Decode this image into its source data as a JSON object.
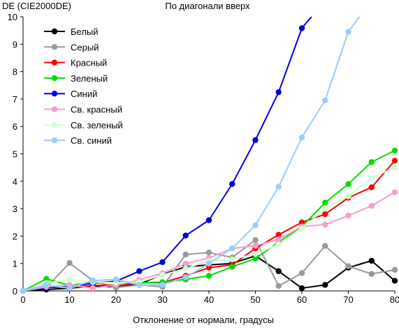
{
  "chart_data": {
    "type": "line",
    "title": "По диагонали вверх",
    "ylabel": "DE (CIE2000DE)",
    "xlabel": "Отклонение от нормали, градусы",
    "xlim": [
      0,
      80
    ],
    "ylim": [
      0,
      10
    ],
    "xticks": [
      0,
      10,
      20,
      30,
      40,
      50,
      60,
      70,
      80
    ],
    "yticks": [
      0,
      1,
      2,
      3,
      4,
      5,
      6,
      7,
      8,
      9,
      10
    ],
    "grid": false,
    "legend_position": "top-left",
    "x": [
      0,
      5,
      10,
      15,
      20,
      25,
      30,
      35,
      40,
      45,
      50,
      55,
      60,
      65,
      70,
      75,
      80
    ],
    "series": [
      {
        "name": "Белый",
        "color": "#000000",
        "values": [
          0,
          0.05,
          0.1,
          0.18,
          0.15,
          0.25,
          0.6,
          0.88,
          0.95,
          1.0,
          1.28,
          0.72,
          0.1,
          0.22,
          0.85,
          1.1,
          0.37
        ]
      },
      {
        "name": "Серый",
        "color": "#999999",
        "values": [
          0,
          0.12,
          1.02,
          0.38,
          0.12,
          0.22,
          0.15,
          1.33,
          1.4,
          1.22,
          1.86,
          0.18,
          0.65,
          1.64,
          0.9,
          0.62,
          0.77
        ]
      },
      {
        "name": "Красный",
        "color": "#ff0000",
        "values": [
          0,
          0.15,
          0.12,
          0.2,
          0.22,
          0.3,
          0.3,
          0.55,
          0.85,
          0.95,
          1.55,
          2.05,
          2.5,
          2.8,
          3.4,
          3.78,
          4.75
        ]
      },
      {
        "name": "Зеленый",
        "color": "#00dd00",
        "values": [
          0,
          0.44,
          0.2,
          0.3,
          0.35,
          0.3,
          0.32,
          0.42,
          0.55,
          0.88,
          1.18,
          1.78,
          2.35,
          3.22,
          3.9,
          4.7,
          5.12
        ]
      },
      {
        "name": "Синий",
        "color": "#0000dd",
        "values": [
          0,
          0.12,
          0.15,
          0.28,
          0.35,
          0.72,
          1.05,
          2.02,
          2.58,
          3.9,
          5.5,
          7.25,
          9.58,
          10.6,
          null,
          null,
          null
        ]
      },
      {
        "name": "Св. красный",
        "color": "#ff99cc",
        "values": [
          0,
          0.15,
          0.22,
          0.1,
          0.22,
          0.4,
          0.65,
          1.0,
          1.2,
          1.55,
          1.65,
          1.88,
          2.35,
          2.42,
          2.75,
          3.1,
          3.6
        ]
      },
      {
        "name": "Св. зеленый",
        "color": "#ccffcc",
        "values": [
          0,
          0.28,
          0.42,
          0.32,
          0.3,
          0.32,
          0.58,
          0.82,
          1.1,
          1.15,
          1.35,
          1.7,
          2.28,
          3.0,
          3.45,
          4.12,
          4.5
        ]
      },
      {
        "name": "Св. синий",
        "color": "#99ccff",
        "values": [
          0,
          0.22,
          0.1,
          0.38,
          0.42,
          0.22,
          0.22,
          0.5,
          1.0,
          1.55,
          2.4,
          3.8,
          5.6,
          6.95,
          9.45,
          10.6,
          null
        ]
      }
    ]
  }
}
